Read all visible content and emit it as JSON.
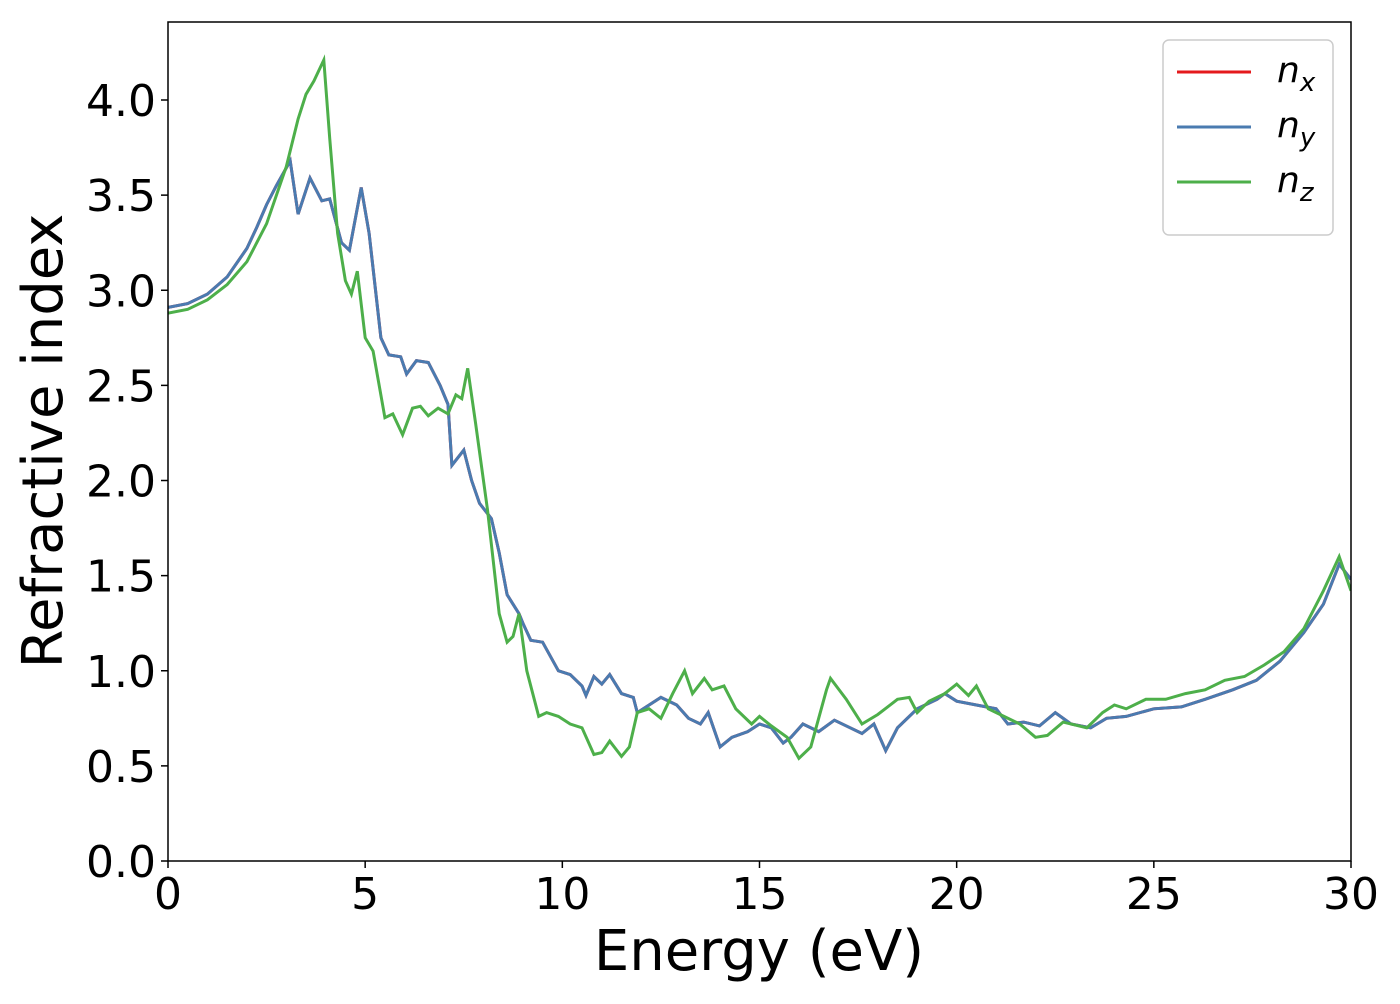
{
  "chart_data": {
    "type": "line",
    "xlabel": "Energy (eV)",
    "ylabel": "Refractive index",
    "xlim": [
      0,
      30
    ],
    "ylim": [
      0,
      4.41
    ],
    "xticks": [
      0,
      5,
      10,
      15,
      20,
      25,
      30
    ],
    "yticks": [
      {
        "value": 0,
        "label": "0.0"
      },
      0.5,
      {
        "value": 1,
        "label": "1.0"
      },
      1.5,
      {
        "value": 2,
        "label": "2.0"
      },
      2.5,
      {
        "value": 3,
        "label": "3.0"
      },
      3.5,
      {
        "value": 4,
        "label": "4.0"
      }
    ],
    "legend": "upper right",
    "series": [
      {
        "name": "nx",
        "color": "#e41a1c",
        "x": [
          0,
          0.5,
          1,
          1.5,
          2,
          2.25,
          2.5,
          2.75,
          3.1,
          3.3,
          3.6,
          3.9,
          4.1,
          4.4,
          4.6,
          4.9,
          5.1,
          5.4,
          5.6,
          5.9,
          6.05,
          6.3,
          6.6,
          6.9,
          7.1,
          7.2,
          7.5,
          7.7,
          7.9,
          8.2,
          8.4,
          8.6,
          8.9,
          9.0,
          9.2,
          9.5,
          9.9,
          10.2,
          10.5,
          10.6,
          10.8,
          11.0,
          11.2,
          11.5,
          11.8,
          11.9,
          12.2,
          12.5,
          12.9,
          13.2,
          13.5,
          13.7,
          14.0,
          14.3,
          14.7,
          15.0,
          15.3,
          15.6,
          15.8,
          16.1,
          16.5,
          16.9,
          17.3,
          17.6,
          17.9,
          18.2,
          18.5,
          19.0,
          19.5,
          19.7,
          20.0,
          20.5,
          21.0,
          21.3,
          21.7,
          22.1,
          22.5,
          22.9,
          23.4,
          23.8,
          24.3,
          25,
          25.7,
          26.3,
          27,
          27.6,
          28.2,
          28.8,
          29.3,
          29.7,
          30
        ],
        "values": [
          2.91,
          2.93,
          2.98,
          3.07,
          3.22,
          3.33,
          3.45,
          3.55,
          3.68,
          3.4,
          3.59,
          3.47,
          3.48,
          3.25,
          3.21,
          3.54,
          3.3,
          2.75,
          2.66,
          2.65,
          2.56,
          2.63,
          2.62,
          2.5,
          2.4,
          2.08,
          2.16,
          2.0,
          1.88,
          1.8,
          1.62,
          1.4,
          1.3,
          1.25,
          1.16,
          1.15,
          1.0,
          0.98,
          0.92,
          0.87,
          0.97,
          0.93,
          0.98,
          0.88,
          0.86,
          0.78,
          0.82,
          0.86,
          0.82,
          0.75,
          0.72,
          0.78,
          0.6,
          0.65,
          0.68,
          0.72,
          0.7,
          0.62,
          0.65,
          0.72,
          0.68,
          0.74,
          0.7,
          0.67,
          0.72,
          0.58,
          0.7,
          0.8,
          0.85,
          0.88,
          0.84,
          0.82,
          0.8,
          0.72,
          0.73,
          0.71,
          0.78,
          0.72,
          0.7,
          0.75,
          0.76,
          0.8,
          0.81,
          0.85,
          0.9,
          0.95,
          1.05,
          1.2,
          1.35,
          1.56,
          1.48
        ]
      },
      {
        "name": "ny",
        "color": "#4a7bb0",
        "x": [
          0,
          0.5,
          1,
          1.5,
          2,
          2.25,
          2.5,
          2.75,
          3.1,
          3.3,
          3.6,
          3.9,
          4.1,
          4.4,
          4.6,
          4.9,
          5.1,
          5.4,
          5.6,
          5.9,
          6.05,
          6.3,
          6.6,
          6.9,
          7.1,
          7.2,
          7.5,
          7.7,
          7.9,
          8.2,
          8.4,
          8.6,
          8.9,
          9.0,
          9.2,
          9.5,
          9.9,
          10.2,
          10.5,
          10.6,
          10.8,
          11.0,
          11.2,
          11.5,
          11.8,
          11.9,
          12.2,
          12.5,
          12.9,
          13.2,
          13.5,
          13.7,
          14.0,
          14.3,
          14.7,
          15.0,
          15.3,
          15.6,
          15.8,
          16.1,
          16.5,
          16.9,
          17.3,
          17.6,
          17.9,
          18.2,
          18.5,
          19.0,
          19.5,
          19.7,
          20.0,
          20.5,
          21.0,
          21.3,
          21.7,
          22.1,
          22.5,
          22.9,
          23.4,
          23.8,
          24.3,
          25,
          25.7,
          26.3,
          27,
          27.6,
          28.2,
          28.8,
          29.3,
          29.7,
          30
        ],
        "values": [
          2.91,
          2.93,
          2.98,
          3.07,
          3.22,
          3.33,
          3.45,
          3.55,
          3.68,
          3.4,
          3.59,
          3.47,
          3.48,
          3.25,
          3.21,
          3.54,
          3.3,
          2.75,
          2.66,
          2.65,
          2.56,
          2.63,
          2.62,
          2.5,
          2.4,
          2.08,
          2.16,
          2.0,
          1.88,
          1.8,
          1.62,
          1.4,
          1.3,
          1.25,
          1.16,
          1.15,
          1.0,
          0.98,
          0.92,
          0.87,
          0.97,
          0.93,
          0.98,
          0.88,
          0.86,
          0.78,
          0.82,
          0.86,
          0.82,
          0.75,
          0.72,
          0.78,
          0.6,
          0.65,
          0.68,
          0.72,
          0.7,
          0.62,
          0.65,
          0.72,
          0.68,
          0.74,
          0.7,
          0.67,
          0.72,
          0.58,
          0.7,
          0.8,
          0.85,
          0.88,
          0.84,
          0.82,
          0.8,
          0.72,
          0.73,
          0.71,
          0.78,
          0.72,
          0.7,
          0.75,
          0.76,
          0.8,
          0.81,
          0.85,
          0.9,
          0.95,
          1.05,
          1.2,
          1.35,
          1.56,
          1.48
        ]
      },
      {
        "name": "nz",
        "color": "#4daf4a",
        "x": [
          0,
          0.5,
          1,
          1.5,
          2,
          2.5,
          3,
          3.3,
          3.5,
          3.7,
          3.95,
          4.1,
          4.3,
          4.5,
          4.65,
          4.8,
          5.0,
          5.2,
          5.5,
          5.7,
          5.95,
          6.2,
          6.4,
          6.6,
          6.85,
          7.1,
          7.3,
          7.45,
          7.6,
          7.8,
          8.1,
          8.4,
          8.6,
          8.75,
          8.9,
          9.1,
          9.4,
          9.6,
          9.9,
          10.2,
          10.5,
          10.8,
          11.0,
          11.2,
          11.5,
          11.7,
          11.9,
          12.2,
          12.5,
          12.8,
          13.1,
          13.3,
          13.6,
          13.8,
          14.1,
          14.4,
          14.8,
          15.0,
          15.3,
          15.7,
          16.0,
          16.3,
          16.7,
          16.8,
          17.2,
          17.6,
          18.0,
          18.5,
          18.8,
          19.0,
          19.3,
          19.7,
          20.0,
          20.3,
          20.5,
          20.8,
          21.2,
          21.6,
          22.0,
          22.3,
          22.7,
          23.3,
          23.7,
          24.0,
          24.3,
          24.8,
          25.3,
          25.8,
          26.3,
          26.8,
          27.3,
          27.8,
          28.3,
          28.8,
          29.3,
          29.7,
          30
        ],
        "values": [
          2.88,
          2.9,
          2.95,
          3.03,
          3.15,
          3.35,
          3.65,
          3.9,
          4.03,
          4.1,
          4.21,
          3.8,
          3.3,
          3.05,
          2.98,
          3.1,
          2.75,
          2.68,
          2.33,
          2.35,
          2.24,
          2.38,
          2.39,
          2.34,
          2.38,
          2.35,
          2.45,
          2.43,
          2.59,
          2.3,
          1.85,
          1.3,
          1.15,
          1.18,
          1.3,
          1.0,
          0.76,
          0.78,
          0.76,
          0.72,
          0.7,
          0.56,
          0.57,
          0.63,
          0.55,
          0.6,
          0.78,
          0.8,
          0.75,
          0.88,
          1.0,
          0.88,
          0.96,
          0.9,
          0.92,
          0.8,
          0.72,
          0.76,
          0.71,
          0.65,
          0.54,
          0.6,
          0.9,
          0.96,
          0.85,
          0.72,
          0.77,
          0.85,
          0.86,
          0.78,
          0.84,
          0.88,
          0.93,
          0.87,
          0.92,
          0.8,
          0.76,
          0.72,
          0.65,
          0.66,
          0.73,
          0.7,
          0.78,
          0.82,
          0.8,
          0.85,
          0.85,
          0.88,
          0.9,
          0.95,
          0.97,
          1.03,
          1.1,
          1.22,
          1.42,
          1.6,
          1.42
        ]
      }
    ]
  }
}
